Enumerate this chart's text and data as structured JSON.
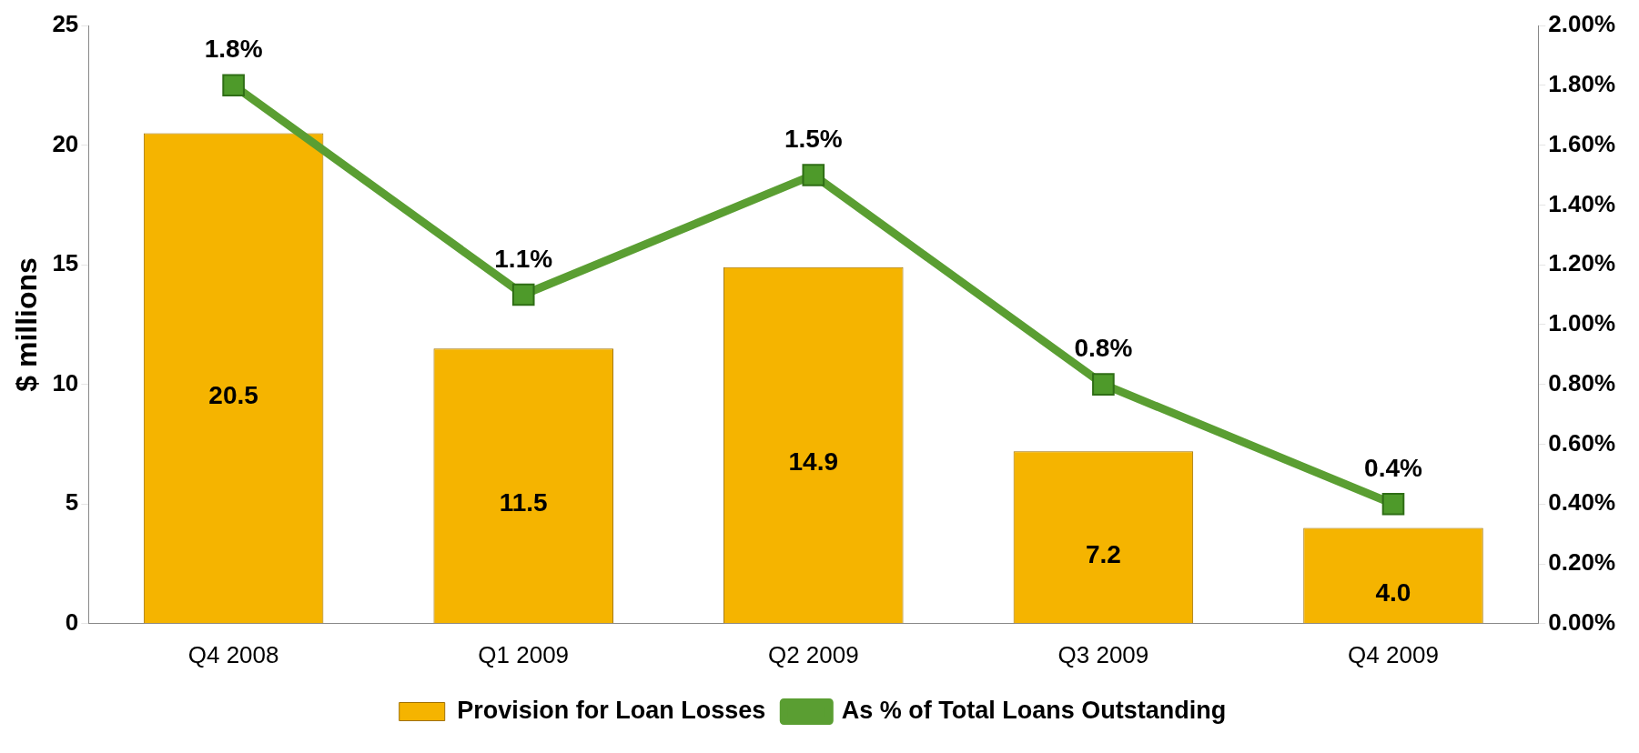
{
  "chart_data": {
    "type": "bar",
    "ylabel": "$ millions",
    "categories": [
      "Q4 2008",
      "Q1 2009",
      "Q2 2009",
      "Q3 2009",
      "Q4 2009"
    ],
    "series": [
      {
        "name": "Provision for Loan Losses",
        "color": "#f5b400",
        "values": [
          20.5,
          11.5,
          14.9,
          7.2,
          4.0
        ],
        "value_labels": [
          "20.5",
          "11.5",
          "14.9",
          "7.2",
          "4.0"
        ]
      },
      {
        "name": "As % of Total Loans Outstanding",
        "type": "line",
        "axis": "y2",
        "color": "#5a9e32",
        "values": [
          1.8,
          1.1,
          1.5,
          0.8,
          0.4
        ],
        "value_labels": [
          "1.8%",
          "1.1%",
          "1.5%",
          "0.8%",
          "0.4%"
        ],
        "marker": "square"
      }
    ],
    "ylim": [
      0,
      25
    ],
    "yticks": [
      0,
      5,
      10,
      15,
      20,
      25
    ],
    "y2lim": [
      0,
      2
    ],
    "y2ticks": [
      {
        "value": 0,
        "label": "0.00%"
      },
      {
        "value": 0.2,
        "label": "0.20%"
      },
      {
        "value": 0.4,
        "label": "0.40%"
      },
      {
        "value": 0.6,
        "label": "0.60%"
      },
      {
        "value": 0.8,
        "label": "0.80%"
      },
      {
        "value": 1,
        "label": "1.00%"
      },
      {
        "value": 1.2,
        "label": "1.20%"
      },
      {
        "value": 1.4,
        "label": "1.40%"
      },
      {
        "value": 1.6,
        "label": "1.60%"
      },
      {
        "value": 1.8,
        "label": "1.80%"
      },
      {
        "value": 2,
        "label": "2.00%"
      }
    ],
    "grid": false,
    "legend": "bottom"
  }
}
